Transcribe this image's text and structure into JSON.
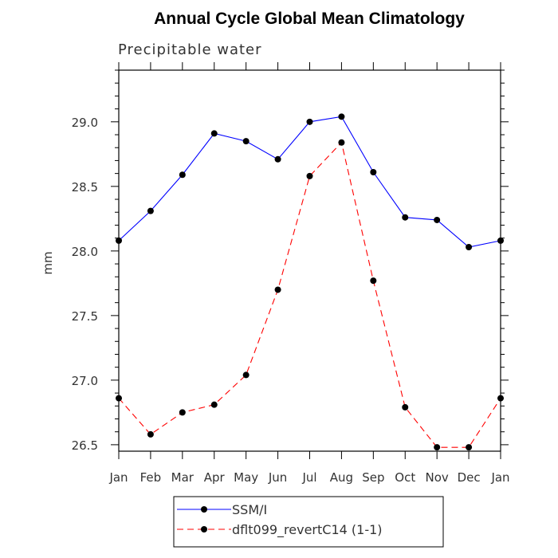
{
  "chart_data": {
    "type": "line",
    "title": "Annual Cycle Global Mean Climatology",
    "subtitle": "Precipitable water",
    "xlabel": "",
    "ylabel": "mm",
    "categories": [
      "Jan",
      "Feb",
      "Mar",
      "Apr",
      "May",
      "Jun",
      "Jul",
      "Aug",
      "Sep",
      "Oct",
      "Nov",
      "Dec",
      "Jan"
    ],
    "ylim": [
      26.45,
      29.4
    ],
    "yticks": [
      "26.5",
      "27.0",
      "27.5",
      "28.0",
      "28.5",
      "29.0"
    ],
    "legend_position": "bottom-center",
    "grid": false,
    "series": [
      {
        "name": "SSM/I",
        "color": "#0000ff",
        "dash": "solid",
        "values": [
          28.08,
          28.31,
          28.59,
          28.91,
          28.85,
          28.71,
          29.0,
          29.04,
          28.61,
          28.26,
          28.24,
          28.03,
          28.08
        ]
      },
      {
        "name": "dflt099_revertC14 (1-1)",
        "color": "#ff0000",
        "dash": "dashed",
        "values": [
          26.86,
          26.58,
          26.75,
          26.81,
          27.04,
          27.7,
          28.58,
          28.84,
          27.77,
          26.79,
          26.48,
          26.48,
          26.86
        ]
      }
    ]
  }
}
